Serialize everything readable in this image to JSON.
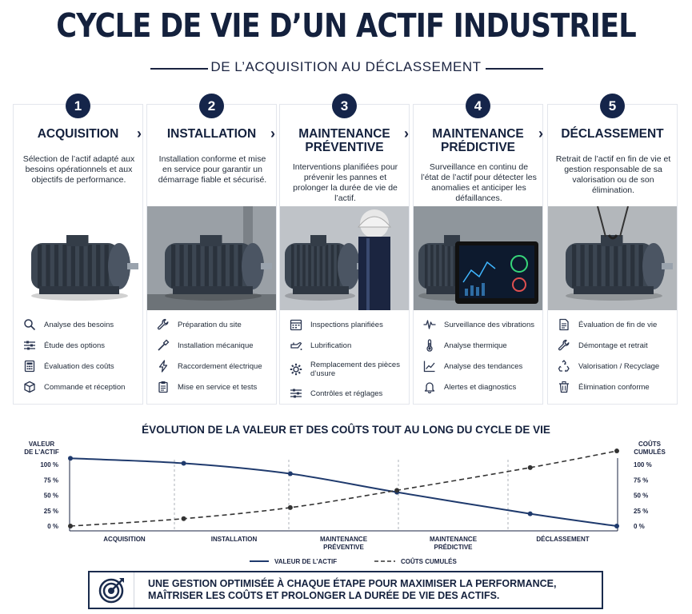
{
  "title": "CYCLE DE VIE D’UN ACTIF INDUSTRIEL",
  "subtitle": "DE L’ACQUISITION AU DÉCLASSEMENT",
  "steps": [
    {
      "num": "1",
      "title": "ACQUISITION",
      "desc": "Sélection de l’actif adapté aux besoins opérationnels et aux objectifs de performance.",
      "items": [
        {
          "icon": "search-icon",
          "label": "Analyse des besoins"
        },
        {
          "icon": "sliders-icon",
          "label": "Étude des options"
        },
        {
          "icon": "calculator-icon",
          "label": "Évaluation des coûts"
        },
        {
          "icon": "box-icon",
          "label": "Commande et réception"
        }
      ]
    },
    {
      "num": "2",
      "title": "INSTALLATION",
      "desc": "Installation conforme et mise en service pour garantir un démarrage fiable et sécurisé.",
      "items": [
        {
          "icon": "wrench-icon",
          "label": "Préparation du site"
        },
        {
          "icon": "screwdriver-icon",
          "label": "Installation mécanique"
        },
        {
          "icon": "lightning-icon",
          "label": "Raccordement électrique"
        },
        {
          "icon": "clipboard-icon",
          "label": "Mise en service et tests"
        }
      ]
    },
    {
      "num": "3",
      "title": "MAINTENANCE PRÉVENTIVE",
      "desc": "Interventions planifiées pour prévenir les pannes et prolonger la durée de vie de l’actif.",
      "items": [
        {
          "icon": "calendar-icon",
          "label": "Inspections planifiées"
        },
        {
          "icon": "oil-can-icon",
          "label": "Lubrification"
        },
        {
          "icon": "gear-icon",
          "label": "Remplacement des pièces d’usure"
        },
        {
          "icon": "sliders-icon",
          "label": "Contrôles et réglages"
        }
      ]
    },
    {
      "num": "4",
      "title": "MAINTENANCE PRÉDICTIVE",
      "desc": "Surveillance en continu de l’état de l’actif pour détecter les anomalies et anticiper les défaillances.",
      "items": [
        {
          "icon": "pulse-icon",
          "label": "Surveillance des vibrations"
        },
        {
          "icon": "thermometer-icon",
          "label": "Analyse thermique"
        },
        {
          "icon": "trend-chart-icon",
          "label": "Analyse des tendances"
        },
        {
          "icon": "bell-icon",
          "label": "Alertes et diagnostics"
        }
      ]
    },
    {
      "num": "5",
      "title": "DÉCLASSEMENT",
      "desc": "Retrait de l’actif en fin de vie et gestion responsable de sa valorisation ou de son élimination.",
      "items": [
        {
          "icon": "document-icon",
          "label": "Évaluation de fin de vie"
        },
        {
          "icon": "wrench-icon",
          "label": "Démontage et retrait"
        },
        {
          "icon": "recycle-icon",
          "label": "Valorisation / Recyclage"
        },
        {
          "icon": "trash-icon",
          "label": "Élimination conforme"
        }
      ]
    }
  ],
  "chart_data": {
    "type": "line",
    "title": "ÉVOLUTION DE LA VALEUR ET DES COÛTS TOUT AU LONG DU CYCLE DE VIE",
    "categories": [
      "ACQUISITION",
      "INSTALLATION",
      "MAINTENANCE PRÉVENTIVE",
      "MAINTENANCE PRÉDICTIVE",
      "DÉCLASSEMENT"
    ],
    "y_left_label": "VALEUR DE L’ACTIF",
    "y_right_label": "COÛTS CUMULÉS",
    "y_ticks": [
      "100 %",
      "75 %",
      "50 %",
      "25 %",
      "0 %"
    ],
    "ylim": [
      0,
      100
    ],
    "grid": "vertical dashed dividers between phases",
    "legend_position": "bottom",
    "series": [
      {
        "name": "VALEUR DE L’ACTIF",
        "style": "solid",
        "color": "#1f3a6d",
        "x": [
          0,
          1,
          2,
          3,
          4,
          5
        ],
        "values": [
          110,
          102,
          85,
          55,
          20,
          0
        ]
      },
      {
        "name": "COÛTS CUMULÉS",
        "style": "dashed",
        "color": "#333333",
        "x": [
          0,
          1,
          2,
          3,
          4,
          5
        ],
        "values": [
          0,
          12,
          30,
          58,
          95,
          122
        ]
      }
    ]
  },
  "callout": {
    "line1": "UNE GESTION OPTIMISÉE À CHAQUE ÉTAPE POUR MAXIMISER LA PERFORMANCE,",
    "line2": "MAÎTRISER LES COÛTS ET PROLONGER LA DURÉE DE VIE DES ACTIFS."
  }
}
